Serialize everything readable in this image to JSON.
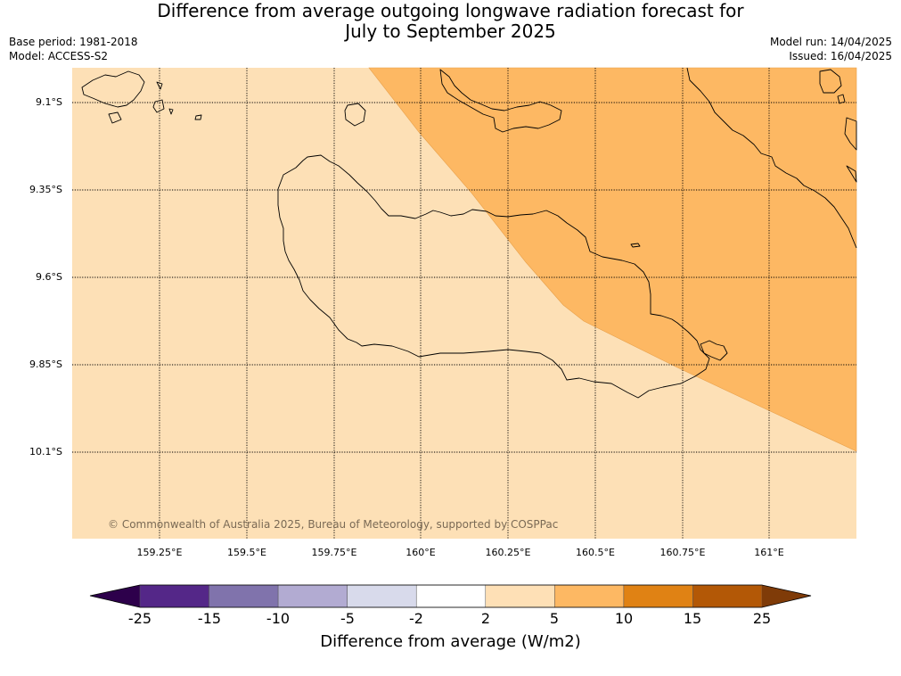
{
  "title": {
    "line1": "Difference from average outgoing longwave radiation forecast for",
    "line2": "July to September 2025"
  },
  "meta_left": {
    "base_period": "Base period: 1981-2018",
    "model": "Model: ACCESS-S2"
  },
  "meta_right": {
    "model_run": "Model run: 14/04/2025",
    "issued": "Issued: 16/04/2025"
  },
  "map": {
    "latitude_labels": [
      "9.1°S",
      "9.35°S",
      "9.6°S",
      "9.85°S",
      "10.1°S"
    ],
    "longitude_labels": [
      "159.25°E",
      "159.5°E",
      "159.75°E",
      "160°E",
      "160.25°E",
      "160.5°E",
      "160.75°E",
      "161°E"
    ],
    "region_colors": {
      "background_2_to_5": "#fde0b6",
      "band_5_to_10": "#fdb863"
    },
    "copyright": "© Commonwealth of Australia 2025, Bureau of Meteorology, supported by COSPPac"
  },
  "colorbar": {
    "ticks": [
      "-25",
      "-15",
      "-10",
      "-5",
      "-2",
      "2",
      "5",
      "10",
      "15",
      "25"
    ],
    "colors": {
      "extend_low": "#2d004b",
      "bins": [
        "#542788",
        "#8073ac",
        "#b2abd2",
        "#d8daeb",
        "#ffffff",
        "#fee0b6",
        "#fdb863",
        "#e08214",
        "#b35806"
      ],
      "extend_high": "#7f3b08"
    },
    "label": "Difference from average (W/m2)"
  }
}
